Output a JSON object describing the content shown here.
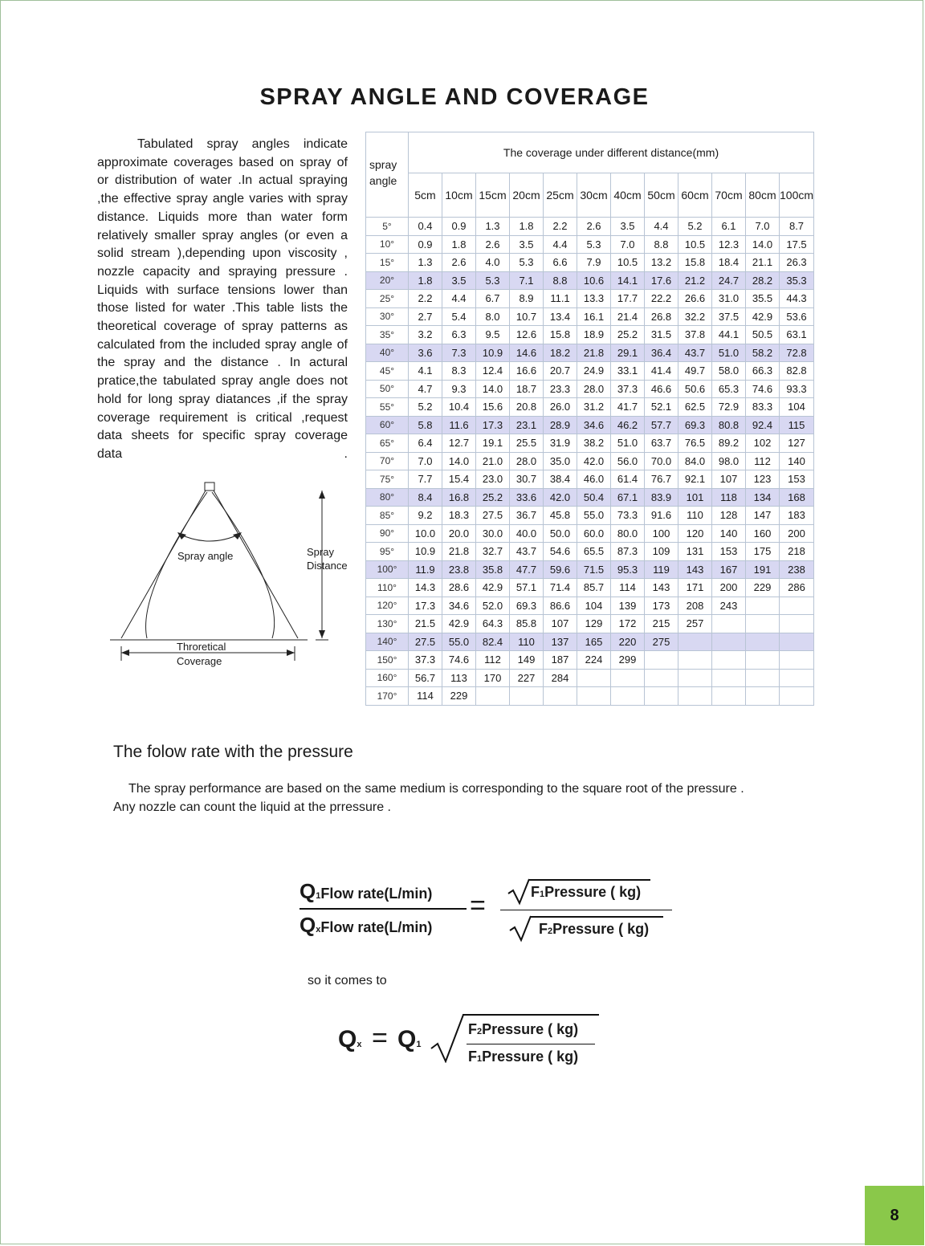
{
  "title": "SPRAY ANGLE AND COVERAGE",
  "intro_text": "Tabulated spray angles indicate approximate coverages based on spray of or distribution of water .In actual spraying ,the effective spray angle varies with spray distance. Liquids more than water form relatively smaller spray angles (or even a solid stream ),depending upon viscosity , nozzle capacity and spraying pressure . Liquids with surface tensions lower than those listed for water .This table lists the theoretical coverage of spray patterns as calculated from the included spray angle of the spray and the distance . In actural pratice,the tabulated spray angle does not hold for long spray diatances ,if the spray coverage requirement is critical ,request data sheets for specific spray coverage data .",
  "diagram": {
    "spray_angle_label": "Spray angle",
    "spray_distance_label_1": "Spray",
    "spray_distance_label_2": "Distance",
    "coverage_label_1": "Throretical",
    "coverage_label_2": "Coverage"
  },
  "table": {
    "corner_label_1": "spray",
    "corner_label_2": "angle",
    "header": "The coverage under different distance(mm)",
    "distances": [
      "5cm",
      "10cm",
      "15cm",
      "20cm",
      "25cm",
      "30cm",
      "40cm",
      "50cm",
      "60cm",
      "70cm",
      "80cm",
      "100cm"
    ],
    "rows": [
      {
        "angle": "5°",
        "values": [
          "0.4",
          "0.9",
          "1.3",
          "1.8",
          "2.2",
          "2.6",
          "3.5",
          "4.4",
          "5.2",
          "6.1",
          "7.0",
          "8.7"
        ],
        "highlight": false
      },
      {
        "angle": "10°",
        "values": [
          "0.9",
          "1.8",
          "2.6",
          "3.5",
          "4.4",
          "5.3",
          "7.0",
          "8.8",
          "10.5",
          "12.3",
          "14.0",
          "17.5"
        ],
        "highlight": false
      },
      {
        "angle": "15°",
        "values": [
          "1.3",
          "2.6",
          "4.0",
          "5.3",
          "6.6",
          "7.9",
          "10.5",
          "13.2",
          "15.8",
          "18.4",
          "21.1",
          "26.3"
        ],
        "highlight": false
      },
      {
        "angle": "20°",
        "values": [
          "1.8",
          "3.5",
          "5.3",
          "7.1",
          "8.8",
          "10.6",
          "14.1",
          "17.6",
          "21.2",
          "24.7",
          "28.2",
          "35.3"
        ],
        "highlight": true
      },
      {
        "angle": "25°",
        "values": [
          "2.2",
          "4.4",
          "6.7",
          "8.9",
          "11.1",
          "13.3",
          "17.7",
          "22.2",
          "26.6",
          "31.0",
          "35.5",
          "44.3"
        ],
        "highlight": false
      },
      {
        "angle": "30°",
        "values": [
          "2.7",
          "5.4",
          "8.0",
          "10.7",
          "13.4",
          "16.1",
          "21.4",
          "26.8",
          "32.2",
          "37.5",
          "42.9",
          "53.6"
        ],
        "highlight": false
      },
      {
        "angle": "35°",
        "values": [
          "3.2",
          "6.3",
          "9.5",
          "12.6",
          "15.8",
          "18.9",
          "25.2",
          "31.5",
          "37.8",
          "44.1",
          "50.5",
          "63.1"
        ],
        "highlight": false
      },
      {
        "angle": "40°",
        "values": [
          "3.6",
          "7.3",
          "10.9",
          "14.6",
          "18.2",
          "21.8",
          "29.1",
          "36.4",
          "43.7",
          "51.0",
          "58.2",
          "72.8"
        ],
        "highlight": true
      },
      {
        "angle": "45°",
        "values": [
          "4.1",
          "8.3",
          "12.4",
          "16.6",
          "20.7",
          "24.9",
          "33.1",
          "41.4",
          "49.7",
          "58.0",
          "66.3",
          "82.8"
        ],
        "highlight": false
      },
      {
        "angle": "50°",
        "values": [
          "4.7",
          "9.3",
          "14.0",
          "18.7",
          "23.3",
          "28.0",
          "37.3",
          "46.6",
          "50.6",
          "65.3",
          "74.6",
          "93.3"
        ],
        "highlight": false
      },
      {
        "angle": "55°",
        "values": [
          "5.2",
          "10.4",
          "15.6",
          "20.8",
          "26.0",
          "31.2",
          "41.7",
          "52.1",
          "62.5",
          "72.9",
          "83.3",
          "104"
        ],
        "highlight": false
      },
      {
        "angle": "60°",
        "values": [
          "5.8",
          "11.6",
          "17.3",
          "23.1",
          "28.9",
          "34.6",
          "46.2",
          "57.7",
          "69.3",
          "80.8",
          "92.4",
          "115"
        ],
        "highlight": true
      },
      {
        "angle": "65°",
        "values": [
          "6.4",
          "12.7",
          "19.1",
          "25.5",
          "31.9",
          "38.2",
          "51.0",
          "63.7",
          "76.5",
          "89.2",
          "102",
          "127"
        ],
        "highlight": false
      },
      {
        "angle": "70°",
        "values": [
          "7.0",
          "14.0",
          "21.0",
          "28.0",
          "35.0",
          "42.0",
          "56.0",
          "70.0",
          "84.0",
          "98.0",
          "112",
          "140"
        ],
        "highlight": false
      },
      {
        "angle": "75°",
        "values": [
          "7.7",
          "15.4",
          "23.0",
          "30.7",
          "38.4",
          "46.0",
          "61.4",
          "76.7",
          "92.1",
          "107",
          "123",
          "153"
        ],
        "highlight": false
      },
      {
        "angle": "80°",
        "values": [
          "8.4",
          "16.8",
          "25.2",
          "33.6",
          "42.0",
          "50.4",
          "67.1",
          "83.9",
          "101",
          "118",
          "134",
          "168"
        ],
        "highlight": true
      },
      {
        "angle": "85°",
        "values": [
          "9.2",
          "18.3",
          "27.5",
          "36.7",
          "45.8",
          "55.0",
          "73.3",
          "91.6",
          "110",
          "128",
          "147",
          "183"
        ],
        "highlight": false
      },
      {
        "angle": "90°",
        "values": [
          "10.0",
          "20.0",
          "30.0",
          "40.0",
          "50.0",
          "60.0",
          "80.0",
          "100",
          "120",
          "140",
          "160",
          "200"
        ],
        "highlight": false
      },
      {
        "angle": "95°",
        "values": [
          "10.9",
          "21.8",
          "32.7",
          "43.7",
          "54.6",
          "65.5",
          "87.3",
          "109",
          "131",
          "153",
          "175",
          "218"
        ],
        "highlight": false
      },
      {
        "angle": "100°",
        "values": [
          "11.9",
          "23.8",
          "35.8",
          "47.7",
          "59.6",
          "71.5",
          "95.3",
          "119",
          "143",
          "167",
          "191",
          "238"
        ],
        "highlight": true
      },
      {
        "angle": "110°",
        "values": [
          "14.3",
          "28.6",
          "42.9",
          "57.1",
          "71.4",
          "85.7",
          "114",
          "143",
          "171",
          "200",
          "229",
          "286"
        ],
        "highlight": false
      },
      {
        "angle": "120°",
        "values": [
          "17.3",
          "34.6",
          "52.0",
          "69.3",
          "86.6",
          "104",
          "139",
          "173",
          "208",
          "243",
          "",
          ""
        ],
        "highlight": false
      },
      {
        "angle": "130°",
        "values": [
          "21.5",
          "42.9",
          "64.3",
          "85.8",
          "107",
          "129",
          "172",
          "215",
          "257",
          "",
          "",
          ""
        ],
        "highlight": false
      },
      {
        "angle": "140°",
        "values": [
          "27.5",
          "55.0",
          "82.4",
          "110",
          "137",
          "165",
          "220",
          "275",
          "",
          "",
          "",
          ""
        ],
        "highlight": true
      },
      {
        "angle": "150°",
        "values": [
          "37.3",
          "74.6",
          "112",
          "149",
          "187",
          "224",
          "299",
          "",
          "",
          "",
          "",
          ""
        ],
        "highlight": false
      },
      {
        "angle": "160°",
        "values": [
          "56.7",
          "113",
          "170",
          "227",
          "284",
          "",
          "",
          "",
          "",
          "",
          "",
          ""
        ],
        "highlight": false
      },
      {
        "angle": "170°",
        "values": [
          "114",
          "229",
          "",
          "",
          "",
          "",
          "",
          "",
          "",
          "",
          "",
          ""
        ],
        "highlight": false
      }
    ]
  },
  "flow_heading": "The folow rate with the pressure",
  "flow_text_1": "The spray performance are based on the same medium is corresponding to the square root of the pressure .",
  "flow_text_2": "Any nozzle can count the liquid at the prressure .",
  "formula1": {
    "q1": "Q",
    "q1_sub": "1",
    "q1_label": "Flow rate(L/min)",
    "qx": "Q",
    "qx_sub": "x",
    "qx_label": "Flow rate(L/min)",
    "equals": "=",
    "f1": "F",
    "f1_sub": "1",
    "f1_label": "Pressure ( kg)",
    "f2": "F",
    "f2_sub": "2",
    "f2_label": "Pressure ( kg)"
  },
  "comes_text": "so it comes to",
  "formula2": {
    "qx": "Q",
    "qx_sub": "x",
    "equals": "=",
    "q1": "Q",
    "q1_sub": "1",
    "f2": "F",
    "f2_sub": "2",
    "f2_label": "Pressure ( kg)",
    "f1": "F",
    "f1_sub": "1",
    "f1_label": "Pressure ( kg)"
  },
  "page_number": "8",
  "colors": {
    "highlight_row": "#d8d8f2",
    "page_badge": "#8ac84a",
    "grid": "#b8c4d4"
  }
}
